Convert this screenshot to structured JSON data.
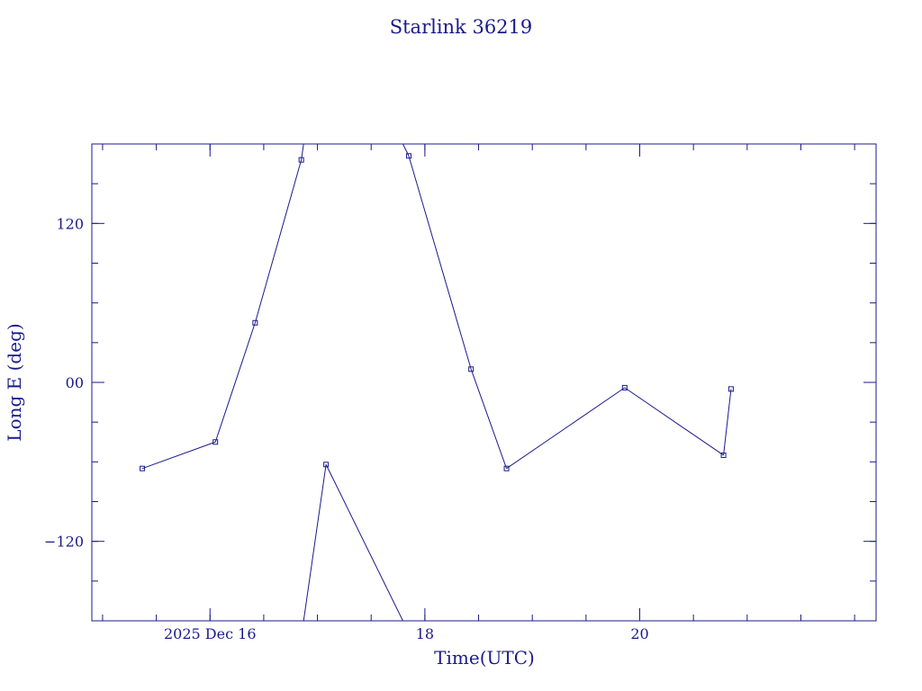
{
  "chart_data": {
    "type": "line",
    "title": "Starlink 36219",
    "xlabel": "Time(UTC)",
    "ylabel": "Long E (deg)",
    "x_unit": "hours since 2025 Dec 16 00:00 UTC",
    "xlim": [
      -1.1,
      6.2
    ],
    "ylim": [
      -180,
      180
    ],
    "x_ticks": [
      {
        "value": 0,
        "label": "2025 Dec 16"
      },
      {
        "value": 2,
        "label": "18"
      },
      {
        "value": 4,
        "label": "20"
      }
    ],
    "y_ticks": [
      {
        "value": 120,
        "label": "120"
      },
      {
        "value": 0,
        "label": "00"
      },
      {
        "value": -120,
        "label": "−120"
      }
    ],
    "series": [
      {
        "name": "",
        "color": "#1a1a8c",
        "marker": "square",
        "points": [
          {
            "x": -0.63,
            "y": -65
          },
          {
            "x": 0.05,
            "y": -45
          },
          {
            "x": 0.42,
            "y": 45
          },
          {
            "x": 0.85,
            "y": 168
          },
          {
            "x": 1.08,
            "y": -62
          },
          {
            "x": 1.85,
            "y": 171
          },
          {
            "x": 2.43,
            "y": 10
          },
          {
            "x": 2.76,
            "y": -65
          },
          {
            "x": 3.86,
            "y": -4
          },
          {
            "x": 4.78,
            "y": -55
          },
          {
            "x": 4.85,
            "y": -5
          }
        ]
      }
    ]
  }
}
